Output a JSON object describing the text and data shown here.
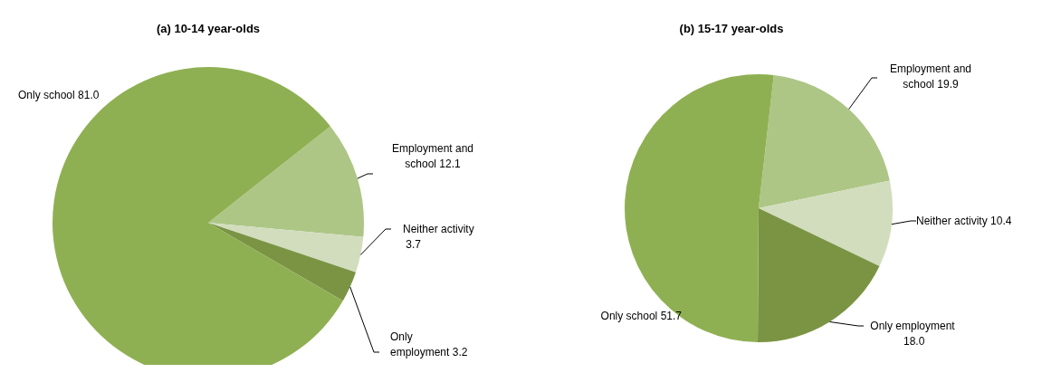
{
  "chart_data": [
    {
      "type": "pie",
      "title": "(a) 10-14 year-olds",
      "categories": [
        "Employment and school",
        "Neither activity",
        "Only employment",
        "Only school"
      ],
      "values": [
        12.1,
        3.7,
        3.2,
        81.0
      ],
      "value_labels": [
        "12.1",
        "3.7",
        "3.2",
        "81.0"
      ],
      "colors": [
        "#adc686",
        "#d2ddbd",
        "#7a9444",
        "#8fb052"
      ]
    },
    {
      "type": "pie",
      "title": "(b) 15-17 year-olds",
      "categories": [
        "Employment and school",
        "Neither activity",
        "Only employment",
        "Only school"
      ],
      "values": [
        19.9,
        10.4,
        18.0,
        51.7
      ],
      "value_labels": [
        "19.9",
        "10.4",
        "18.0",
        "51.7"
      ],
      "colors": [
        "#adc686",
        "#d2ddbd",
        "#7a9444",
        "#8fb052"
      ]
    }
  ]
}
